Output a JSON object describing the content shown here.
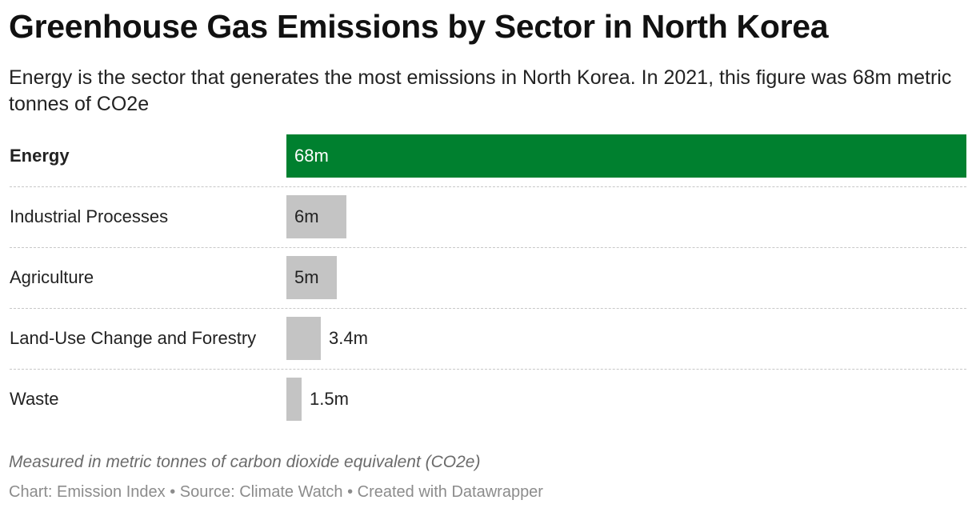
{
  "title": "Greenhouse Gas Emissions by Sector in North Korea",
  "subtitle": "Energy is the sector that generates the most emissions in North Korea. In 2021, this figure was 68m metric tonnes of CO2e",
  "notes": "Measured in metric tonnes of carbon dioxide equivalent (CO2e)",
  "footer": "Chart: Emission Index • Source: Climate Watch • Created with Datawrapper",
  "colors": {
    "highlight": "#00802f",
    "bar": "#c4c4c4"
  },
  "chart_data": {
    "type": "bar",
    "orientation": "horizontal",
    "categories": [
      "Energy",
      "Industrial Processes",
      "Agriculture",
      "Land-Use Change and Forestry",
      "Waste"
    ],
    "values": [
      68,
      6,
      5,
      3.4,
      1.5
    ],
    "value_labels": [
      "68m",
      "6m",
      "5m",
      "3.4m",
      "1.5m"
    ],
    "unit": "metric tonnes of CO2e",
    "highlighted": "Energy",
    "xlim": [
      0,
      68
    ]
  }
}
